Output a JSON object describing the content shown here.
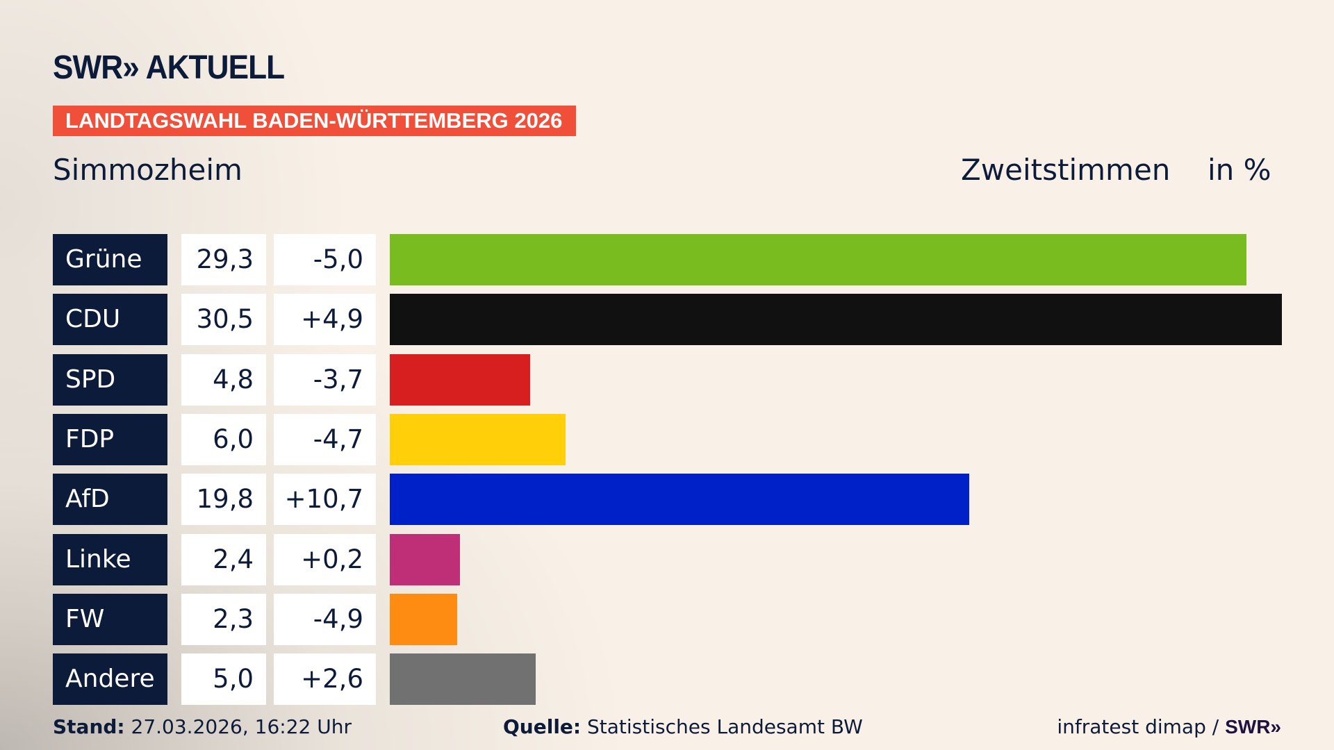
{
  "header": {
    "logo_text": "SWR» AKTUELL",
    "banner": "LANDTAGSWAHL BADEN-WÜRTTEMBERG 2026",
    "banner_color": "#f0503a",
    "region": "Simmozheim",
    "metric": "Zweitstimmen",
    "unit": "in %"
  },
  "chart_data": {
    "type": "bar",
    "orientation": "horizontal",
    "categories": [
      "Grüne",
      "CDU",
      "SPD",
      "FDP",
      "AfD",
      "Linke",
      "FW",
      "Andere"
    ],
    "values": [
      29.3,
      30.5,
      4.8,
      6.0,
      19.8,
      2.4,
      2.3,
      5.0
    ],
    "value_labels": [
      "29,3",
      "30,5",
      "4,8",
      "6,0",
      "19,8",
      "2,4",
      "2,3",
      "5,0"
    ],
    "change_labels": [
      "-5,0",
      "+4,9",
      "-3,7",
      "-4,7",
      "+10,7",
      "+0,2",
      "-4,9",
      "+2,6"
    ],
    "colors": [
      "#79bc1f",
      "#111111",
      "#d71f1f",
      "#ffd00a",
      "#0021c8",
      "#be2f78",
      "#ff8c12",
      "#717171"
    ],
    "xlim": [
      0,
      30.5
    ],
    "grid": false
  },
  "footer": {
    "stand_label": "Stand:",
    "stand_value": " 27.03.2026, 16:22 Uhr",
    "source_label": "Quelle:",
    "source_value": " Statistisches Landesamt BW",
    "credit": "infratest dimap / ",
    "credit_logo": "SWR»"
  }
}
